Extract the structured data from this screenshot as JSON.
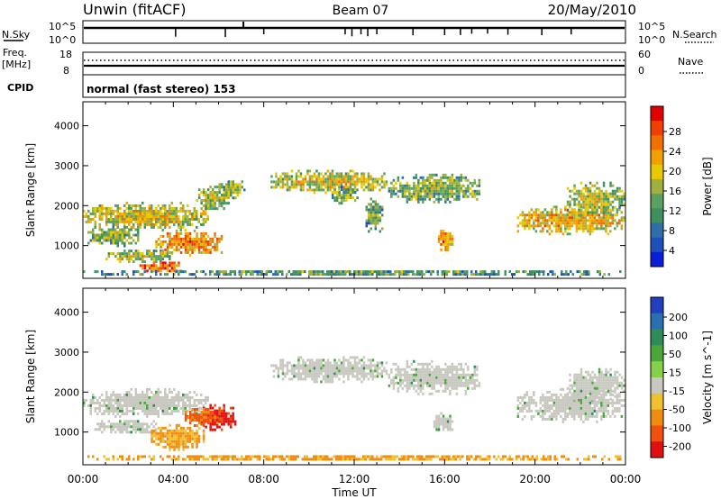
{
  "header": {
    "site": "Unwin (fitACF)",
    "beam": "Beam 07",
    "date": "20/May/2010"
  },
  "top_panels": {
    "nsky_label": "N.Sky",
    "nsearch_label": "N.Search",
    "nsky_ticks": [
      "10^5",
      "10^0"
    ],
    "nsearch_ticks": [
      "10^5",
      "10^0"
    ],
    "freq_label_1": "Freq.",
    "freq_label_2": "[MHz]",
    "freq_ticks": [
      "18",
      "8"
    ],
    "nave_label": "Nave",
    "nave_ticks": [
      "60",
      "0"
    ],
    "cpid_label": "CPID",
    "cpid_text": "normal (fast stereo) 153"
  },
  "colorbars": {
    "power": {
      "label": "Power [dB]",
      "ticks": [
        "28",
        "24",
        "20",
        "16",
        "12",
        "8",
        "4"
      ],
      "colors": [
        "#e00000",
        "#f04000",
        "#f07000",
        "#f0a000",
        "#e8c800",
        "#a0b040",
        "#5aa060",
        "#3f8f5f",
        "#2e6fa8",
        "#1f4fb8",
        "#0a1ed8"
      ]
    },
    "velocity": {
      "label": "Velocity [m s^-1]",
      "ticks": [
        "200",
        "100",
        "50",
        "15",
        "-15",
        "-50",
        "-100",
        "-200"
      ],
      "colors": [
        "#2040c0",
        "#2a6fb0",
        "#2f8c5a",
        "#4aa83a",
        "#86d04a",
        "#c8c8c0",
        "#f0c030",
        "#f08c10",
        "#f05010",
        "#e01010"
      ]
    }
  },
  "chart_data": [
    {
      "type": "heatmap",
      "title": "",
      "ylabel": "Slant Range [km]",
      "xlabel": "",
      "quantity": "Power [dB]",
      "xlim": [
        "00:00",
        "24:00"
      ],
      "ylim": [
        180,
        4600
      ],
      "y_ticks": [
        1000,
        2000,
        3000,
        4000
      ],
      "x_ticks": [
        "00:00",
        "04:00",
        "08:00",
        "12:00",
        "16:00",
        "20:00",
        "00:00"
      ],
      "regions": [
        {
          "t0": 0.0,
          "t1": 5.6,
          "r0": 1300,
          "r1": 2100,
          "value": 14
        },
        {
          "t0": 0.2,
          "t1": 2.5,
          "r0": 950,
          "r1": 1500,
          "value": 10
        },
        {
          "t0": 1.0,
          "t1": 4.0,
          "r0": 500,
          "r1": 900,
          "value": 12
        },
        {
          "t0": 3.2,
          "t1": 6.2,
          "r0": 700,
          "r1": 1400,
          "value": 18
        },
        {
          "t0": 2.5,
          "t1": 4.5,
          "r0": 280,
          "r1": 600,
          "value": 22
        },
        {
          "t0": 5.0,
          "t1": 6.5,
          "r0": 1800,
          "r1": 2500,
          "value": 12
        },
        {
          "t0": 6.0,
          "t1": 7.2,
          "r0": 2100,
          "r1": 2700,
          "value": 10
        },
        {
          "t0": 8.3,
          "t1": 13.5,
          "r0": 2250,
          "r1": 2900,
          "value": 14
        },
        {
          "t0": 11.0,
          "t1": 12.2,
          "r0": 2000,
          "r1": 2500,
          "value": 10
        },
        {
          "t0": 13.5,
          "t1": 17.6,
          "r0": 2000,
          "r1": 2800,
          "value": 10
        },
        {
          "t0": 15.7,
          "t1": 16.4,
          "r0": 800,
          "r1": 1400,
          "value": 18
        },
        {
          "t0": 12.5,
          "t1": 13.3,
          "r0": 1300,
          "r1": 2200,
          "value": 8
        },
        {
          "t0": 19.2,
          "t1": 24.0,
          "r0": 1200,
          "r1": 2000,
          "value": 16
        },
        {
          "t0": 21.4,
          "t1": 24.0,
          "r0": 1700,
          "r1": 2600,
          "value": 12
        },
        {
          "t0": 0.0,
          "t1": 24.0,
          "r0": 220,
          "r1": 380,
          "value": 8
        }
      ]
    },
    {
      "type": "heatmap",
      "title": "",
      "ylabel": "Slant Range [km]",
      "xlabel": "Time UT",
      "quantity": "Velocity [m s^-1]",
      "xlim": [
        "00:00",
        "24:00"
      ],
      "ylim": [
        180,
        4600
      ],
      "y_ticks": [
        1000,
        2000,
        3000,
        4000
      ],
      "x_ticks": [
        "00:00",
        "04:00",
        "08:00",
        "12:00",
        "16:00",
        "20:00",
        "00:00"
      ],
      "regions": [
        {
          "t0": 0.0,
          "t1": 5.6,
          "r0": 1300,
          "r1": 2100,
          "value": 0
        },
        {
          "t0": 0.5,
          "t1": 3.5,
          "r0": 900,
          "r1": 1300,
          "value": 0
        },
        {
          "t0": 3.0,
          "t1": 5.4,
          "r0": 500,
          "r1": 1200,
          "value": -60
        },
        {
          "t0": 5.2,
          "t1": 6.8,
          "r0": 1000,
          "r1": 1700,
          "value": -220
        },
        {
          "t0": 4.5,
          "t1": 6.0,
          "r0": 1100,
          "r1": 1600,
          "value": -120
        },
        {
          "t0": 8.3,
          "t1": 13.5,
          "r0": 2200,
          "r1": 2900,
          "value": 0
        },
        {
          "t0": 13.5,
          "t1": 17.6,
          "r0": 1900,
          "r1": 2800,
          "value": 0
        },
        {
          "t0": 15.5,
          "t1": 16.4,
          "r0": 900,
          "r1": 1500,
          "value": 0
        },
        {
          "t0": 19.2,
          "t1": 24.0,
          "r0": 1200,
          "r1": 2100,
          "value": 0
        },
        {
          "t0": 21.4,
          "t1": 24.0,
          "r0": 1700,
          "r1": 2600,
          "value": 0
        },
        {
          "t0": 0.0,
          "t1": 24.0,
          "r0": 220,
          "r1": 420,
          "value": -60
        }
      ]
    }
  ]
}
